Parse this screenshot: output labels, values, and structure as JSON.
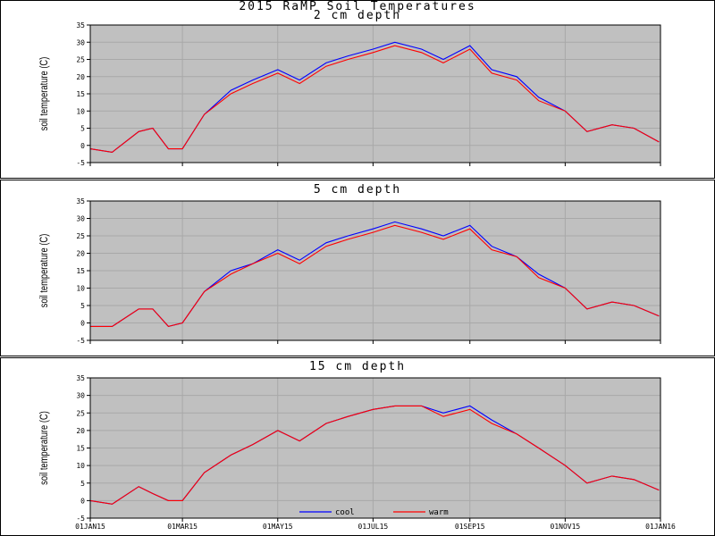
{
  "main_title": "2015 RaMP Soil Temperatures",
  "legend": {
    "placement": "bottom-center",
    "items": [
      {
        "name": "cool",
        "color": "#0000ff"
      },
      {
        "name": "warm",
        "color": "#ff0000"
      }
    ]
  },
  "colors": {
    "plot_background": "#c0c0c0",
    "grid": "#a8a8a8",
    "frame": "#000000"
  },
  "chart_data": [
    {
      "type": "line",
      "title": "2 cm depth",
      "ylabel": "soil temperature (C)",
      "ylim": [
        -5,
        35
      ],
      "yticks": [
        -5,
        0,
        5,
        10,
        15,
        20,
        25,
        30,
        35
      ],
      "xlim": [
        "2015-01-01",
        "2016-01-01"
      ],
      "grid": true,
      "x": [
        "2015-01-01",
        "2015-01-15",
        "2015-02-01",
        "2015-02-10",
        "2015-02-20",
        "2015-03-01",
        "2015-03-15",
        "2015-04-01",
        "2015-04-15",
        "2015-05-01",
        "2015-05-15",
        "2015-06-01",
        "2015-06-15",
        "2015-07-01",
        "2015-07-15",
        "2015-08-01",
        "2015-08-15",
        "2015-09-01",
        "2015-09-15",
        "2015-10-01",
        "2015-10-15",
        "2015-11-01",
        "2015-11-15",
        "2015-12-01",
        "2015-12-15",
        "2015-12-31"
      ],
      "series": [
        {
          "name": "cool",
          "values": [
            -1,
            -2,
            4,
            5,
            -1,
            -1,
            9,
            16,
            19,
            22,
            19,
            24,
            26,
            28,
            30,
            28,
            25,
            29,
            22,
            20,
            14,
            10,
            4,
            6,
            5,
            1
          ]
        },
        {
          "name": "warm",
          "values": [
            -1,
            -2,
            4,
            5,
            -1,
            -1,
            9,
            15,
            18,
            21,
            18,
            23,
            25,
            27,
            29,
            27,
            24,
            28,
            21,
            19,
            13,
            10,
            4,
            6,
            5,
            1
          ]
        }
      ]
    },
    {
      "type": "line",
      "title": "5 cm depth",
      "ylabel": "soil temperature (C)",
      "ylim": [
        -5,
        35
      ],
      "yticks": [
        -5,
        0,
        5,
        10,
        15,
        20,
        25,
        30,
        35
      ],
      "xlim": [
        "2015-01-01",
        "2016-01-01"
      ],
      "grid": true,
      "x": [
        "2015-01-01",
        "2015-01-15",
        "2015-02-01",
        "2015-02-10",
        "2015-02-20",
        "2015-03-01",
        "2015-03-15",
        "2015-04-01",
        "2015-04-15",
        "2015-05-01",
        "2015-05-15",
        "2015-06-01",
        "2015-06-15",
        "2015-07-01",
        "2015-07-15",
        "2015-08-01",
        "2015-08-15",
        "2015-09-01",
        "2015-09-15",
        "2015-10-01",
        "2015-10-15",
        "2015-11-01",
        "2015-11-15",
        "2015-12-01",
        "2015-12-15",
        "2015-12-31"
      ],
      "series": [
        {
          "name": "cool",
          "values": [
            -1,
            -1,
            4,
            4,
            -1,
            0,
            9,
            15,
            17,
            21,
            18,
            23,
            25,
            27,
            29,
            27,
            25,
            28,
            22,
            19,
            14,
            10,
            4,
            6,
            5,
            2
          ]
        },
        {
          "name": "warm",
          "values": [
            -1,
            -1,
            4,
            4,
            -1,
            0,
            9,
            14,
            17,
            20,
            17,
            22,
            24,
            26,
            28,
            26,
            24,
            27,
            21,
            19,
            13,
            10,
            4,
            6,
            5,
            2
          ]
        }
      ]
    },
    {
      "type": "line",
      "title": "15 cm depth",
      "ylabel": "soil temperature (C)",
      "ylim": [
        -5,
        35
      ],
      "yticks": [
        -5,
        0,
        5,
        10,
        15,
        20,
        25,
        30,
        35
      ],
      "xlim": [
        "2015-01-01",
        "2016-01-01"
      ],
      "xticks": [
        "01JAN15",
        "01MAR15",
        "01MAY15",
        "01JUL15",
        "01SEP15",
        "01NOV15",
        "01JAN16"
      ],
      "grid": true,
      "x": [
        "2015-01-01",
        "2015-01-15",
        "2015-02-01",
        "2015-02-10",
        "2015-02-20",
        "2015-03-01",
        "2015-03-15",
        "2015-04-01",
        "2015-04-15",
        "2015-05-01",
        "2015-05-15",
        "2015-06-01",
        "2015-06-15",
        "2015-07-01",
        "2015-07-15",
        "2015-08-01",
        "2015-08-15",
        "2015-09-01",
        "2015-09-15",
        "2015-10-01",
        "2015-10-15",
        "2015-11-01",
        "2015-11-15",
        "2015-12-01",
        "2015-12-15",
        "2015-12-31"
      ],
      "series": [
        {
          "name": "cool",
          "values": [
            0,
            -1,
            4,
            2,
            0,
            0,
            8,
            13,
            16,
            20,
            17,
            22,
            24,
            26,
            27,
            27,
            25,
            27,
            23,
            19,
            15,
            10,
            5,
            7,
            6,
            3
          ]
        },
        {
          "name": "warm",
          "values": [
            0,
            -1,
            4,
            2,
            0,
            0,
            8,
            13,
            16,
            20,
            17,
            22,
            24,
            26,
            27,
            27,
            24,
            26,
            22,
            19,
            15,
            10,
            5,
            7,
            6,
            3
          ]
        }
      ]
    }
  ]
}
